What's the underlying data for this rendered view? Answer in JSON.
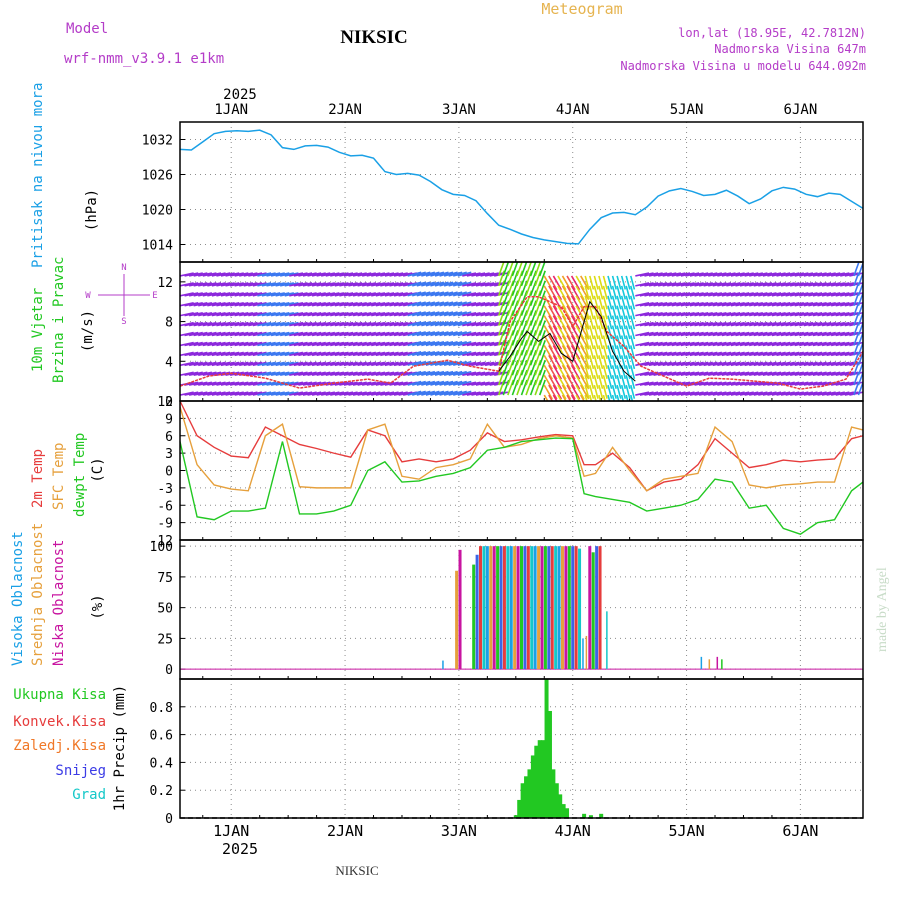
{
  "header": {
    "model_label": "Model",
    "model_name": "wrf-nmm_v3.9.1  e1km",
    "station": "NIKSIC",
    "meteogram": "Meteogram",
    "lonlat": "lon,lat (18.95E, 42.7812N)",
    "altitude": "Nadmorska Visina 647m",
    "model_altitude": "Nadmorska Visina u modelu 644.092m",
    "footer_station": "NIKSIC",
    "credit": "made by Angel"
  },
  "time_axis": {
    "year": "2025",
    "day_labels": [
      "1JAN",
      "2JAN",
      "3JAN",
      "4JAN",
      "5JAN",
      "6JAN"
    ],
    "range_days": [
      0.55,
      6.55
    ]
  },
  "colors": {
    "pressure": "#1aa0e6",
    "temp2m": "#e63c3c",
    "sfc": "#e6a03c",
    "dewpt": "#22c822",
    "label_magenta": "#b43cc8",
    "meteogram_title": "#e6b450",
    "total_rain": "#22c822",
    "convective": "#e63c3c",
    "frozen": "#f07828",
    "snow": "#3c3ce6",
    "graupel": "#14c8c8"
  },
  "chart_data": [
    {
      "type": "line",
      "panel": "pressure",
      "ylabel_main": "Pritisak na nivou mora",
      "unit": "(hPa)",
      "ylim": [
        1011,
        1035
      ],
      "yticks": [
        1014,
        1020,
        1026,
        1032
      ],
      "series": [
        {
          "x": [
            0.55,
            0.65,
            0.75,
            0.85,
            0.95,
            1.05,
            1.15,
            1.25,
            1.35,
            1.45,
            1.55,
            1.65,
            1.75,
            1.85,
            1.95,
            2.05,
            2.15,
            2.25,
            2.35,
            2.45,
            2.55,
            2.65,
            2.75,
            2.85,
            2.95,
            3.05,
            3.15,
            3.25,
            3.35,
            3.45,
            3.55,
            3.65,
            3.75,
            3.85,
            3.95,
            4.05,
            4.15,
            4.25,
            4.35,
            4.45,
            4.55,
            4.65,
            4.75,
            4.85,
            4.95,
            5.05,
            5.15,
            5.25,
            5.35,
            5.45,
            5.55,
            5.65,
            5.75,
            5.85,
            5.95,
            6.05,
            6.15,
            6.25,
            6.35,
            6.45,
            6.55
          ],
          "y": [
            1030.3,
            1030.2,
            1031.6,
            1033,
            1033.4,
            1033.5,
            1033.4,
            1033.6,
            1032.8,
            1030.6,
            1030.3,
            1030.9,
            1031,
            1030.7,
            1029.8,
            1029.2,
            1029.3,
            1028.8,
            1026.5,
            1026,
            1026.2,
            1025.9,
            1024.8,
            1023.4,
            1022.6,
            1022.4,
            1021.5,
            1019.3,
            1017.3,
            1016.6,
            1015.8,
            1015.2,
            1014.8,
            1014.5,
            1014.2,
            1014.1,
            1016.6,
            1018.6,
            1019.4,
            1019.5,
            1019.1,
            1020.4,
            1022.3,
            1023.2,
            1023.6,
            1023.1,
            1022.4,
            1022.6,
            1023.3,
            1022.3,
            1021,
            1021.8,
            1023.2,
            1023.8,
            1023.5,
            1022.6,
            1022.2,
            1022.8,
            1022.6,
            1021.4,
            1020.2
          ]
        }
      ]
    },
    {
      "type": "line",
      "panel": "wind",
      "ylabel_main": "10m Vjetar",
      "ylabel_sub": "Brzina i Pravac",
      "unit": "(m/s)",
      "compass": [
        "N",
        "W",
        "E",
        "S"
      ],
      "ylim": [
        0,
        14
      ],
      "yticks": [
        0,
        4,
        8,
        12
      ],
      "series": [
        {
          "name": "gust",
          "x": [
            0.55,
            0.8,
            1.0,
            1.3,
            1.6,
            1.9,
            2.2,
            2.4,
            2.6,
            2.9,
            3.1,
            3.35,
            3.45,
            3.6,
            3.7,
            3.8,
            3.9,
            4.0,
            4.1,
            4.2,
            4.3,
            4.45,
            4.6,
            4.8,
            5.0,
            5.2,
            5.4,
            5.6,
            5.8,
            6.0,
            6.2,
            6.4,
            6.55
          ],
          "y": [
            1.5,
            2.5,
            2.8,
            2.3,
            1.3,
            1.8,
            2.2,
            1.8,
            3.5,
            4.1,
            3.5,
            3,
            8,
            10.5,
            10.5,
            10,
            9.5,
            7.5,
            9.5,
            9.5,
            7,
            5.5,
            3.5,
            2.5,
            1.5,
            2.3,
            2.2,
            2,
            1.8,
            1.2,
            1.5,
            2.2,
            5
          ]
        },
        {
          "name": "mean",
          "x": [
            3.35,
            3.45,
            3.55,
            3.6,
            3.7,
            3.8,
            3.9,
            4.0,
            4.05,
            4.15,
            4.25,
            4.35,
            4.45,
            4.55
          ],
          "y": [
            3,
            4.5,
            6.3,
            7,
            6,
            6.8,
            4.8,
            4,
            6,
            10,
            8.5,
            5,
            3,
            2
          ]
        }
      ]
    },
    {
      "type": "line",
      "panel": "temperature",
      "ylabels": [
        "2m Temp",
        "SFC Temp",
        "dewpt Temp"
      ],
      "unit": "(C)",
      "ylim": [
        -12,
        12
      ],
      "yticks": [
        -12,
        -9,
        -6,
        -3,
        0,
        3,
        6,
        9,
        12
      ],
      "x": [
        0.55,
        0.7,
        0.85,
        1.0,
        1.15,
        1.3,
        1.45,
        1.6,
        1.75,
        1.9,
        2.05,
        2.2,
        2.35,
        2.5,
        2.65,
        2.8,
        2.95,
        3.1,
        3.25,
        3.4,
        3.55,
        3.7,
        3.85,
        4.0,
        4.1,
        4.2,
        4.35,
        4.5,
        4.65,
        4.8,
        4.95,
        5.1,
        5.25,
        5.4,
        5.55,
        5.7,
        5.85,
        6.0,
        6.15,
        6.3,
        6.45,
        6.55
      ],
      "series": [
        {
          "name": "2m Temp",
          "y": [
            12,
            6,
            4,
            2.5,
            2.2,
            7.5,
            6,
            4.5,
            3.8,
            3,
            2.3,
            7,
            6,
            1.5,
            2,
            1.5,
            2,
            3.5,
            6.5,
            5,
            5.3,
            5.8,
            6.2,
            6,
            1,
            1,
            3,
            0.5,
            -3.5,
            -2,
            -1.5,
            1,
            5.5,
            3,
            0.5,
            1,
            1.8,
            1.5,
            1.8,
            2,
            5.5,
            6
          ]
        },
        {
          "name": "SFC Temp",
          "y": [
            11,
            1,
            -2.5,
            -3.2,
            -3.5,
            6,
            8,
            -2.8,
            -3,
            -3,
            -3,
            7,
            8,
            -1,
            -1.5,
            0.5,
            1,
            2,
            8,
            4,
            4.5,
            5.5,
            6,
            5.6,
            -1,
            -0.5,
            4,
            0,
            -3.5,
            -1.5,
            -1,
            -0.5,
            7.5,
            5,
            -2.5,
            -3,
            -2.5,
            -2.3,
            -2,
            -2,
            7.5,
            7
          ]
        },
        {
          "name": "dewpt Temp",
          "y": [
            5,
            -8,
            -8.5,
            -7,
            -7,
            -6.5,
            5,
            -7.5,
            -7.5,
            -7,
            -6,
            0,
            1.5,
            -2,
            -1.8,
            -1,
            -0.5,
            0.5,
            3.5,
            4,
            5,
            5.3,
            5.6,
            5.5,
            -4,
            -4.5,
            -5,
            -5.5,
            -7,
            -6.5,
            -6,
            -5,
            -1.5,
            -2,
            -6.5,
            -6,
            -10,
            -11,
            -9,
            -8.5,
            -3.5,
            -2
          ]
        }
      ]
    },
    {
      "type": "bar",
      "panel": "cloud",
      "ylabels": [
        "Visoka Oblacnost",
        "Srednja Oblacnost",
        "Niska Oblacnost"
      ],
      "unit": "(%)",
      "ylim": [
        -8,
        105
      ],
      "yticks": [
        0,
        25,
        50,
        75,
        100
      ],
      "colors_cycle": [
        "#1aa0e6",
        "#e6a03c",
        "#c814a0",
        "#22c822",
        "#3c64e6",
        "#e63c3c",
        "#14c8c8"
      ],
      "bars": [
        {
          "x": 2.86,
          "v": 7
        },
        {
          "x": 2.98,
          "v": 80
        },
        {
          "x": 3.01,
          "v": 97
        },
        {
          "x": 3.13,
          "v": 85
        },
        {
          "x": 3.16,
          "v": 93
        },
        {
          "x": 3.19,
          "v": 100
        },
        {
          "x": 3.22,
          "v": 100
        },
        {
          "x": 3.25,
          "v": 100
        },
        {
          "x": 3.28,
          "v": 100
        },
        {
          "x": 3.31,
          "v": 100
        },
        {
          "x": 3.34,
          "v": 100
        },
        {
          "x": 3.37,
          "v": 100
        },
        {
          "x": 3.4,
          "v": 100
        },
        {
          "x": 3.43,
          "v": 100
        },
        {
          "x": 3.46,
          "v": 100
        },
        {
          "x": 3.49,
          "v": 100
        },
        {
          "x": 3.52,
          "v": 100
        },
        {
          "x": 3.55,
          "v": 100
        },
        {
          "x": 3.58,
          "v": 100
        },
        {
          "x": 3.61,
          "v": 100
        },
        {
          "x": 3.64,
          "v": 100
        },
        {
          "x": 3.67,
          "v": 100
        },
        {
          "x": 3.7,
          "v": 100
        },
        {
          "x": 3.73,
          "v": 100
        },
        {
          "x": 3.76,
          "v": 100
        },
        {
          "x": 3.79,
          "v": 100
        },
        {
          "x": 3.82,
          "v": 100
        },
        {
          "x": 3.85,
          "v": 100
        },
        {
          "x": 3.88,
          "v": 100
        },
        {
          "x": 3.91,
          "v": 100
        },
        {
          "x": 3.94,
          "v": 100
        },
        {
          "x": 3.97,
          "v": 100
        },
        {
          "x": 4.0,
          "v": 100
        },
        {
          "x": 4.03,
          "v": 100
        },
        {
          "x": 4.06,
          "v": 98
        },
        {
          "x": 4.09,
          "v": 25
        },
        {
          "x": 4.12,
          "v": 27
        },
        {
          "x": 4.15,
          "v": 100
        },
        {
          "x": 4.18,
          "v": 95
        },
        {
          "x": 4.21,
          "v": 100
        },
        {
          "x": 4.24,
          "v": 100
        },
        {
          "x": 4.3,
          "v": 47
        },
        {
          "x": 5.13,
          "v": 10
        },
        {
          "x": 5.2,
          "v": 8
        },
        {
          "x": 5.27,
          "v": 10
        },
        {
          "x": 5.31,
          "v": 8
        }
      ]
    },
    {
      "type": "bar",
      "panel": "precip",
      "ylabels": [
        "Ukupna Kisa",
        "Konvek.Kisa",
        "Zaledj.Kisa",
        "Snijeg",
        "Grad"
      ],
      "unit": "1hr Precip (mm)",
      "ylim": [
        0,
        1.0
      ],
      "yticks": [
        0,
        0.2,
        0.4,
        0.6,
        0.8
      ],
      "bars": [
        {
          "x": 3.5,
          "v": 0.02
        },
        {
          "x": 3.53,
          "v": 0.13
        },
        {
          "x": 3.56,
          "v": 0.25
        },
        {
          "x": 3.59,
          "v": 0.3
        },
        {
          "x": 3.62,
          "v": 0.35
        },
        {
          "x": 3.65,
          "v": 0.45
        },
        {
          "x": 3.68,
          "v": 0.52
        },
        {
          "x": 3.71,
          "v": 0.56
        },
        {
          "x": 3.74,
          "v": 0.56
        },
        {
          "x": 3.77,
          "v": 1.0
        },
        {
          "x": 3.8,
          "v": 0.77
        },
        {
          "x": 3.83,
          "v": 0.35
        },
        {
          "x": 3.86,
          "v": 0.25
        },
        {
          "x": 3.89,
          "v": 0.17
        },
        {
          "x": 3.92,
          "v": 0.1
        },
        {
          "x": 3.95,
          "v": 0.07
        },
        {
          "x": 4.1,
          "v": 0.03
        },
        {
          "x": 4.16,
          "v": 0.02
        },
        {
          "x": 4.25,
          "v": 0.03
        }
      ]
    }
  ]
}
